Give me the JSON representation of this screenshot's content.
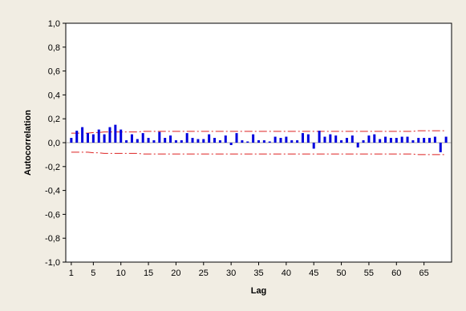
{
  "chart_data": {
    "type": "bar",
    "title": "",
    "xlabel": "Lag",
    "ylabel": "Autocorrelation",
    "ylim": [
      -1.0,
      1.0
    ],
    "xlim": [
      0,
      70
    ],
    "yticks": [
      "1,0",
      "0,8",
      "0,6",
      "0,4",
      "0,2",
      "0,0",
      "-0,2",
      "-0,4",
      "-0,6",
      "-0,8",
      "-1,0"
    ],
    "ytick_values": [
      1.0,
      0.8,
      0.6,
      0.4,
      0.2,
      0.0,
      -0.2,
      -0.4,
      -0.6,
      -0.8,
      -1.0
    ],
    "xticks": [
      "1",
      "5",
      "10",
      "15",
      "20",
      "25",
      "30",
      "35",
      "40",
      "45",
      "50",
      "55",
      "60",
      "65"
    ],
    "xtick_values": [
      1,
      5,
      10,
      15,
      20,
      25,
      30,
      35,
      40,
      45,
      50,
      55,
      60,
      65
    ],
    "grid": false,
    "lags": [
      1,
      2,
      3,
      4,
      5,
      6,
      7,
      8,
      9,
      10,
      11,
      12,
      13,
      14,
      15,
      16,
      17,
      18,
      19,
      20,
      21,
      22,
      23,
      24,
      25,
      26,
      27,
      28,
      29,
      30,
      31,
      32,
      33,
      34,
      35,
      36,
      37,
      38,
      39,
      40,
      41,
      42,
      43,
      44,
      45,
      46,
      47,
      48,
      49,
      50,
      51,
      52,
      53,
      54,
      55,
      56,
      57,
      58,
      59,
      60,
      61,
      62,
      63,
      64,
      65,
      66,
      67,
      68,
      69
    ],
    "values": [
      0.04,
      0.1,
      0.13,
      0.08,
      0.07,
      0.11,
      0.07,
      0.13,
      0.15,
      0.11,
      0.02,
      0.07,
      0.03,
      0.08,
      0.04,
      0.02,
      0.09,
      0.04,
      0.06,
      0.02,
      0.02,
      0.08,
      0.04,
      0.03,
      0.03,
      0.07,
      0.04,
      0.02,
      0.06,
      -0.02,
      0.08,
      0.02,
      0.01,
      0.07,
      0.02,
      0.02,
      0.01,
      0.05,
      0.04,
      0.05,
      0.02,
      0.02,
      0.08,
      0.07,
      -0.05,
      0.1,
      0.05,
      0.07,
      0.06,
      0.02,
      0.04,
      0.06,
      -0.04,
      0.02,
      0.06,
      0.07,
      0.03,
      0.05,
      0.04,
      0.04,
      0.05,
      0.05,
      0.02,
      0.04,
      0.04,
      0.04,
      0.05,
      -0.08,
      0.05
    ],
    "confidence_upper": [
      0.08,
      0.08,
      0.08,
      0.08,
      0.085,
      0.085,
      0.09,
      0.09,
      0.09,
      0.09,
      0.09,
      0.09,
      0.09,
      0.095,
      0.095,
      0.095,
      0.095,
      0.095,
      0.095,
      0.095,
      0.095,
      0.095,
      0.095,
      0.095,
      0.095,
      0.095,
      0.095,
      0.095,
      0.095,
      0.095,
      0.095,
      0.095,
      0.095,
      0.095,
      0.095,
      0.095,
      0.095,
      0.095,
      0.095,
      0.095,
      0.095,
      0.095,
      0.095,
      0.095,
      0.095,
      0.095,
      0.095,
      0.095,
      0.095,
      0.095,
      0.095,
      0.095,
      0.095,
      0.095,
      0.095,
      0.095,
      0.095,
      0.095,
      0.095,
      0.095,
      0.095,
      0.095,
      0.095,
      0.1,
      0.1,
      0.1,
      0.1,
      0.1,
      0.1
    ],
    "colors": {
      "bars": "#0000dd",
      "confidence": "#dd2222",
      "axes": "#000000",
      "plot_bg": "#ffffff",
      "page_bg": "#f1ede3"
    }
  }
}
